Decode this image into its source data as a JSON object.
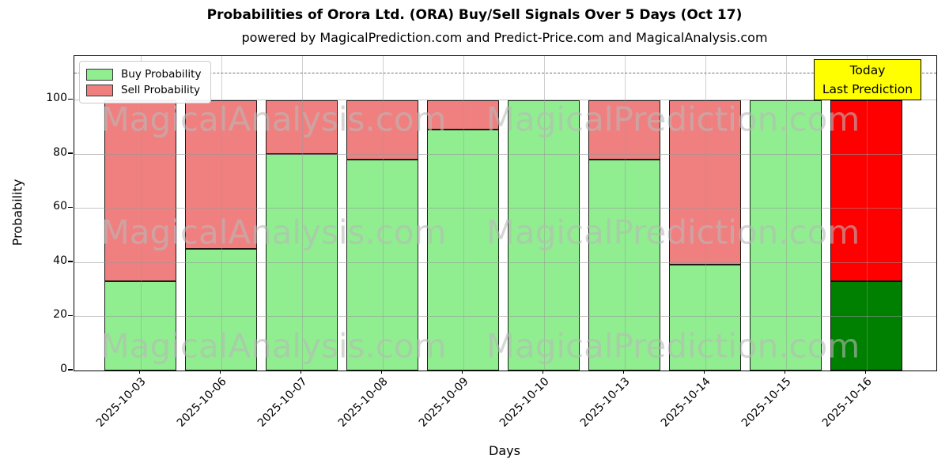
{
  "chart_data": {
    "type": "bar",
    "stacked": true,
    "title": "Probabilities of Orora Ltd. (ORA) Buy/Sell Signals Over 5 Days (Oct 17)",
    "subtitle": "powered by MagicalPrediction.com and Predict-Price.com and MagicalAnalysis.com",
    "xlabel": "Days",
    "ylabel": "Probability",
    "categories": [
      "2025-10-03",
      "2025-10-06",
      "2025-10-07",
      "2025-10-08",
      "2025-10-09",
      "2025-10-10",
      "2025-10-13",
      "2025-10-14",
      "2025-10-15",
      "2025-10-16"
    ],
    "series": [
      {
        "name": "Buy Probability",
        "values": [
          33,
          45,
          80,
          78,
          89,
          100,
          78,
          39,
          100,
          33
        ],
        "colors": [
          "#90EE90",
          "#90EE90",
          "#90EE90",
          "#90EE90",
          "#90EE90",
          "#90EE90",
          "#90EE90",
          "#90EE90",
          "#90EE90",
          "#008000"
        ]
      },
      {
        "name": "Sell Probability",
        "values": [
          67,
          55,
          20,
          22,
          11,
          0,
          22,
          61,
          0,
          67
        ],
        "colors": [
          "#F08080",
          "#F08080",
          "#F08080",
          "#F08080",
          "#F08080",
          "#F08080",
          "#F08080",
          "#F08080",
          "#F08080",
          "#FF0000"
        ]
      }
    ],
    "ylim": [
      0,
      116
    ],
    "yticks": [
      0,
      20,
      40,
      60,
      80,
      100
    ],
    "grid": true,
    "legend_position": "upper left",
    "threshold_line": {
      "y": 110,
      "style": "dashed",
      "color": "#707070"
    },
    "annotation": {
      "lines": [
        "Today",
        "Last Prediction"
      ],
      "bg": "#ffff00",
      "border": "#000000"
    },
    "watermarks": [
      "MagicalAnalysis.com",
      "MagicalPrediction.com"
    ]
  }
}
